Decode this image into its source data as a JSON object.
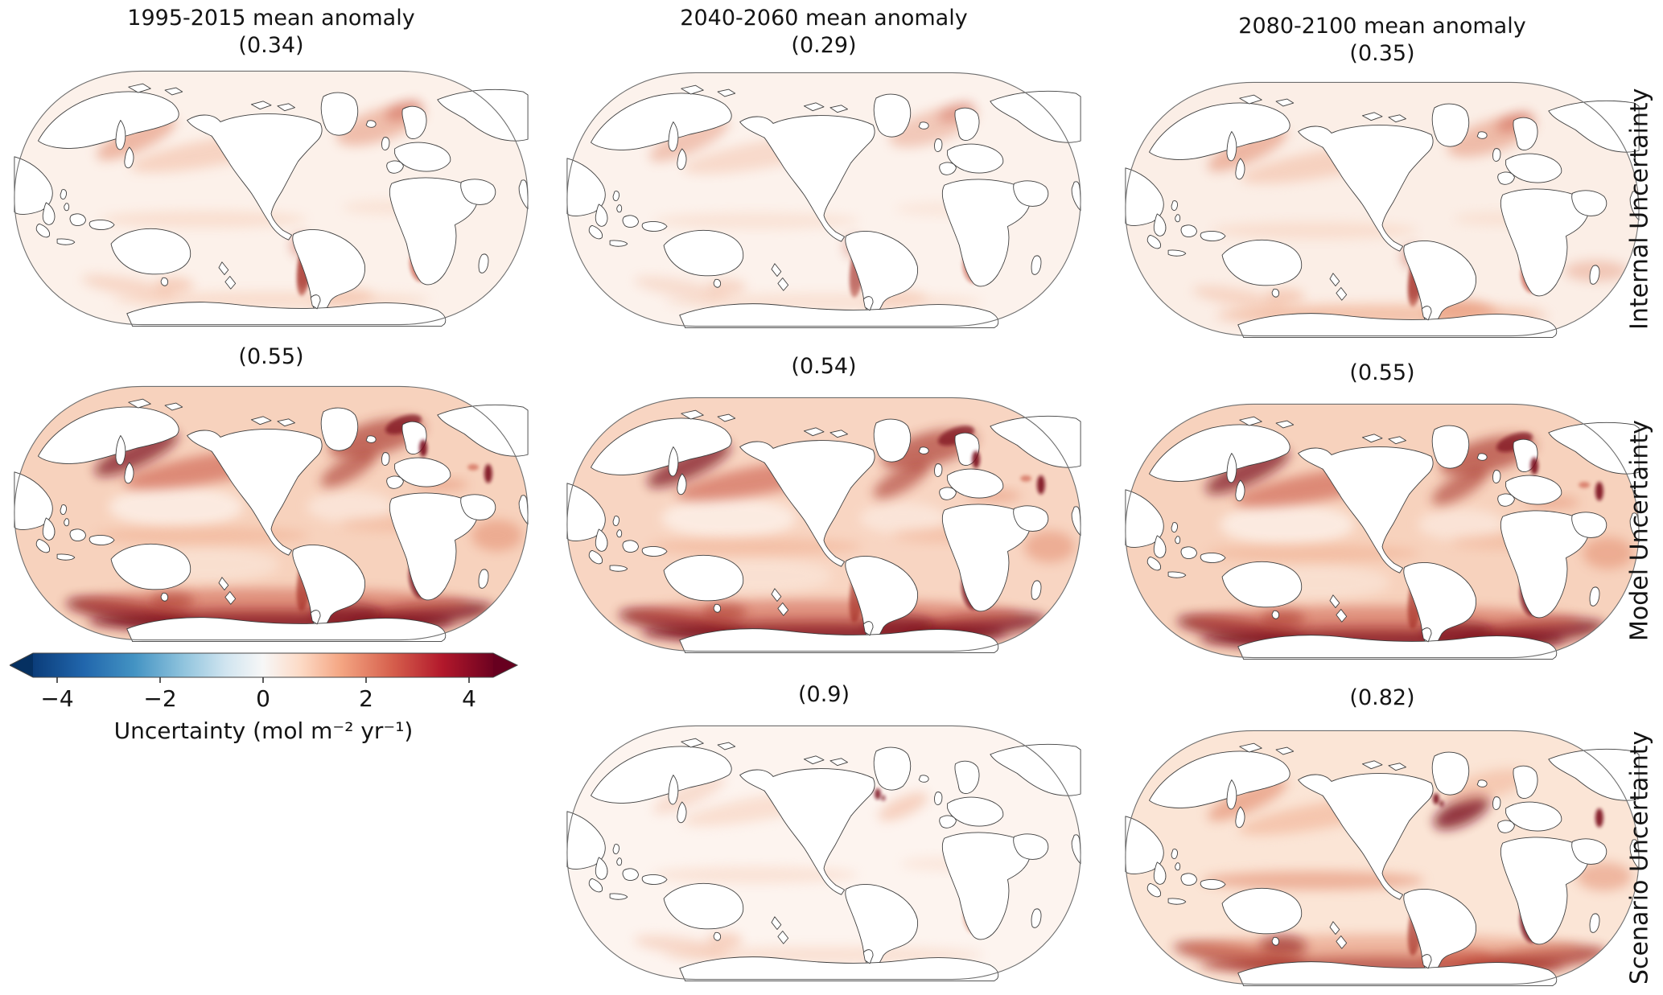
{
  "columns": [
    {
      "title": "1995-2015 mean anomaly",
      "internal_value": "(0.34)",
      "model_value": "(0.55)",
      "scenario_value": ""
    },
    {
      "title": "2040-2060 mean anomaly",
      "internal_value": "(0.29)",
      "model_value": "(0.54)",
      "scenario_value": "(0.9)"
    },
    {
      "title": "2080-2100 mean anomaly",
      "internal_value": "(0.35)",
      "model_value": "(0.55)",
      "scenario_value": "(0.82)"
    }
  ],
  "row_labels": [
    "Internal Uncertainty",
    "Model Uncertainty",
    "Scenario Uncertainty"
  ],
  "colorbar": {
    "label": "Uncertainty (mol m⁻² yr⁻¹)",
    "ticks": [
      "−4",
      "−2",
      "0",
      "2",
      "4"
    ]
  },
  "chart_data": {
    "type": "heatmap",
    "subtype": "global_map_small_multiples",
    "projection": "Robinson",
    "grid": "3 rows × 3 columns (bottom-left cell holds the colorbar; Scenario row has no 1995-2015 panel)",
    "columns": [
      "1995-2015 mean anomaly",
      "2040-2060 mean anomaly",
      "2080-2100 mean anomaly"
    ],
    "rows": [
      "Internal Uncertainty",
      "Model Uncertainty",
      "Scenario Uncertainty"
    ],
    "panel_mean_anomaly": {
      "Internal Uncertainty": [
        0.34,
        0.29,
        0.35
      ],
      "Model Uncertainty": [
        0.55,
        0.54,
        0.55
      ],
      "Scenario Uncertainty": [
        null,
        0.9,
        0.82
      ]
    },
    "colorbar": {
      "label": "Uncertainty (mol m⁻² yr⁻¹)",
      "units": "mol m⁻² yr⁻¹",
      "ticks": [
        -4,
        -2,
        0,
        2,
        4
      ],
      "vmin": -5,
      "vmax": 5,
      "colormap": "RdBu_r",
      "extend": "both"
    },
    "visual_summary": "All panels shade the ocean in positive (red) uncertainty; Model Uncertainty row is darkest, with deep-red bands in the Southern Ocean, western boundary currents (Kuroshio, Gulf Stream), North Atlantic subpolar gyre, and coastal upwelling zones off Peru-Chile and Benguela; Internal and Scenario rows are much lighter."
  }
}
